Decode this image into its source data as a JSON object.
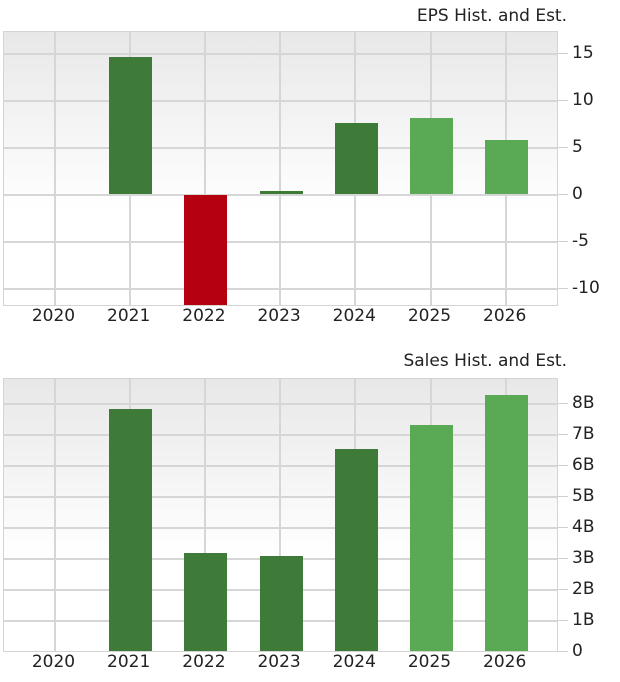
{
  "chart_data": [
    {
      "type": "bar",
      "title": "EPS Hist. and Est.",
      "xlabel": "",
      "ylabel": "",
      "categories": [
        "2020",
        "2021",
        "2022",
        "2023",
        "2024",
        "2025",
        "2026"
      ],
      "values": [
        null,
        14.6,
        -11.8,
        0.35,
        7.65,
        8.1,
        5.85
      ],
      "bar_kinds": [
        "none",
        "historical",
        "negative",
        "historical",
        "historical",
        "estimate",
        "estimate"
      ],
      "yticks": [
        15,
        10,
        5,
        0,
        -5,
        -10
      ],
      "ytick_labels": [
        "15",
        "10",
        "5",
        "0",
        "-5",
        "-10"
      ],
      "ylim": [
        -11.8,
        17.2
      ],
      "grid": true,
      "axis_position": "right",
      "legend": null
    },
    {
      "type": "bar",
      "title": "Sales Hist. and Est.",
      "xlabel": "",
      "ylabel": "",
      "categories": [
        "2020",
        "2021",
        "2022",
        "2023",
        "2024",
        "2025",
        "2026"
      ],
      "values": [
        null,
        7.84,
        3.19,
        3.1,
        6.55,
        7.32,
        8.29
      ],
      "value_unit": "B",
      "bar_kinds": [
        "none",
        "historical",
        "historical",
        "historical",
        "historical",
        "estimate",
        "estimate"
      ],
      "yticks": [
        8,
        7,
        6,
        5,
        4,
        3,
        2,
        1,
        0
      ],
      "ytick_labels": [
        "8B",
        "7B",
        "6B",
        "5B",
        "4B",
        "3B",
        "2B",
        "1B",
        "0"
      ],
      "ylim": [
        0,
        8.8
      ],
      "grid": true,
      "axis_position": "right",
      "legend": null
    }
  ],
  "colors": {
    "historical": "#3e7b39",
    "estimate": "#5aaa55",
    "negative": "#b5000f",
    "grid": "#d6d6d6"
  }
}
